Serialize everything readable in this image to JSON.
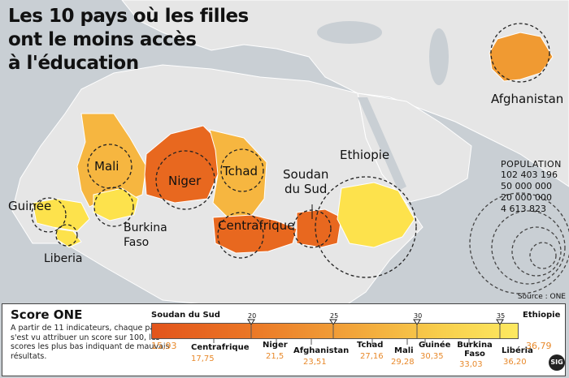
{
  "title": {
    "line1": "Les 10 pays où les filles",
    "line2": "ont le moins accès",
    "line3": "à l'éducation"
  },
  "map_labels": {
    "mali": "Mali",
    "niger": "Niger",
    "tchad": "Tchad",
    "guinee": "Guinée",
    "burkina_1": "Burkina",
    "burkina_2": "Faso",
    "liberia": "Liberia",
    "centrafrique": "Centrafrique",
    "soudan_1": "Soudan",
    "soudan_2": "du Sud",
    "ethiopie": "Ethiopie",
    "afghanistan": "Afghanistan"
  },
  "population_legend": {
    "title": "POPULATION",
    "values": [
      "102 403 196",
      "50 000 000",
      "20 000 000",
      "4 613 823"
    ]
  },
  "source": "Source : ONE",
  "score_panel": {
    "title": "Score ONE",
    "description": "A partir de 11 indicateurs, chaque pays s'est vu attribuer un score sur 100, les scores les plus bas indiquant de mauvais résultats.",
    "ticks": [
      "20",
      "25",
      "30",
      "35"
    ],
    "countries": [
      {
        "name": "Soudan du Sud",
        "score": "15,93"
      },
      {
        "name": "Centrafrique",
        "score": "17,75"
      },
      {
        "name": "Niger",
        "score": "21,5"
      },
      {
        "name": "Afghanistan",
        "score": "23,51"
      },
      {
        "name": "Tchad",
        "score": "27,16"
      },
      {
        "name": "Mali",
        "score": "29,28"
      },
      {
        "name": "Guinée",
        "score": "30,35"
      },
      {
        "name": "Burkina Faso",
        "score": "33,03"
      },
      {
        "name": "Libéria",
        "score": "36,20"
      },
      {
        "name": "Ethiopie",
        "score": "36,79"
      }
    ]
  },
  "logo_text": "SIG",
  "colors": {
    "sea": "#c9cfd4",
    "land": "#e6e6e6",
    "dark_orange": "#e8681f",
    "orange": "#f09a32",
    "light_orange": "#f6b640",
    "yellow": "#fde24c"
  }
}
